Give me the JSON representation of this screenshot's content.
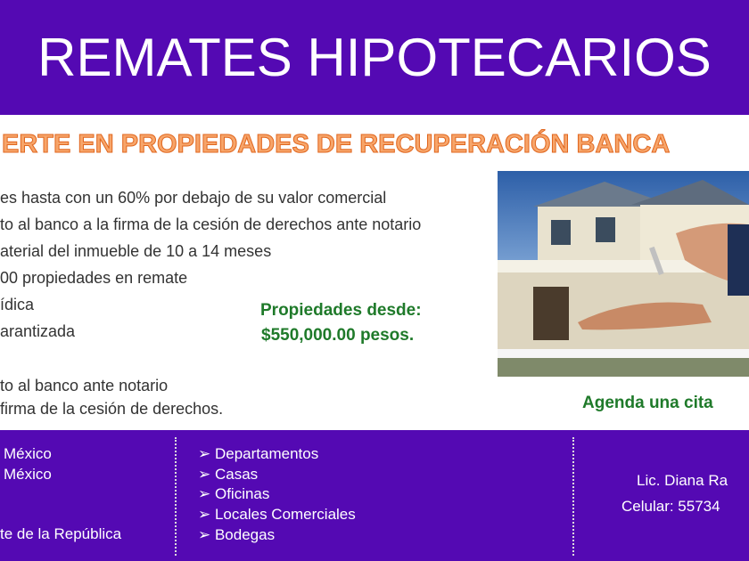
{
  "header": {
    "title": "REMATES HIPOTECARIOS"
  },
  "main": {
    "subtitle": "ERTE EN PROPIEDADES DE RECUPERACIÓN BANCA",
    "lines": [
      "es hasta con un 60% por debajo de su valor comercial",
      "to al banco a la firma de la cesión de derechos ante notario",
      "aterial del inmueble de 10 a 14 meses",
      "00 propiedades en remate",
      "ídica",
      "arantizada",
      "to al banco ante notario",
      "firma de la cesión de derechos."
    ],
    "price_label": "Propiedades desde:",
    "price_value": "$550,000.00 pesos.",
    "cta": "Agenda una cita"
  },
  "footer": {
    "locations": [
      "México",
      "México",
      "te de la República"
    ],
    "property_types": [
      "Departamentos",
      "Casas",
      "Oficinas",
      "Locales Comerciales",
      "Bodegas"
    ],
    "bullet_icon": "arrowhead-bullet",
    "contact_name": "Lic. Diana Ra",
    "contact_phone": "Celular: 55734"
  },
  "colors": {
    "purple": "#5409b3",
    "orange": "#f08a3a",
    "green": "#1f7a2a"
  }
}
